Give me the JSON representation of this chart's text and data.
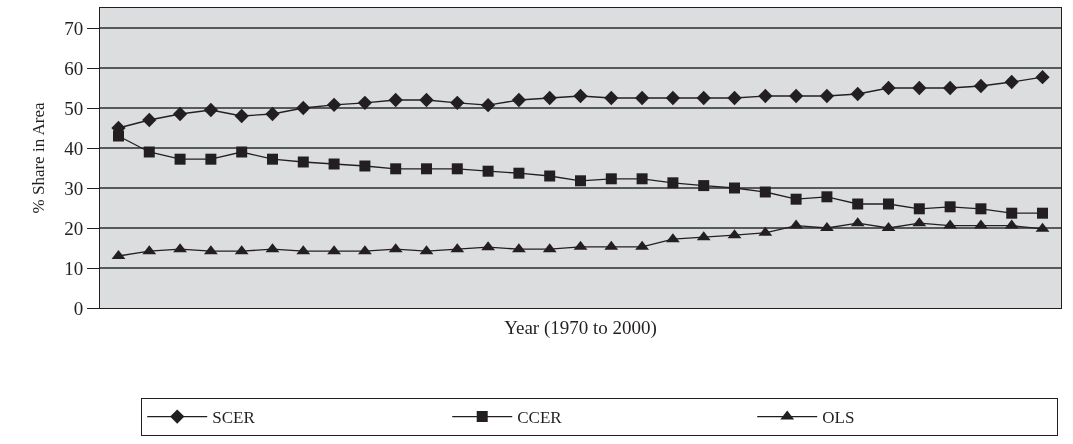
{
  "chart_data": {
    "type": "line",
    "xlabel": "Year (1970 to 2000)",
    "ylabel": "% Share in Area",
    "categories": [
      null,
      null,
      null,
      null,
      null,
      null,
      null,
      null,
      null,
      null,
      null,
      null,
      null,
      null,
      null,
      null,
      null,
      null,
      null,
      null,
      null,
      null,
      null,
      null,
      null,
      null,
      null,
      null,
      null,
      null,
      null
    ],
    "series": [
      {
        "name": "SCER",
        "color": "#231f20",
        "marker": "diamond",
        "values": [
          45,
          47,
          48.5,
          49.5,
          48,
          48.5,
          50,
          50.8,
          51.3,
          52,
          52,
          51.3,
          50.7,
          52,
          52.5,
          53,
          52.5,
          52.5,
          52.5,
          52.5,
          52.5,
          53,
          53,
          53,
          53.5,
          55,
          55,
          55,
          55.5,
          56.5,
          57.7
        ]
      },
      {
        "name": "CCER",
        "color": "#231f20",
        "marker": "square",
        "values": [
          43,
          39,
          37.2,
          37.2,
          39,
          37.2,
          36.5,
          36,
          35.5,
          34.8,
          34.8,
          34.8,
          34.2,
          33.7,
          33,
          31.8,
          32.3,
          32.3,
          31.3,
          30.6,
          30,
          29,
          27.2,
          27.8,
          26,
          26,
          24.8,
          25.3,
          24.8,
          23.7,
          23.7
        ]
      },
      {
        "name": "OLS",
        "color": "#231f20",
        "marker": "triangle",
        "values": [
          13,
          14.2,
          14.7,
          14.2,
          14.2,
          14.7,
          14.2,
          14.2,
          14.2,
          14.7,
          14.2,
          14.7,
          15.2,
          14.7,
          14.7,
          15.3,
          15.3,
          15.3,
          17.2,
          17.7,
          18.2,
          18.8,
          20.6,
          20,
          21.2,
          20,
          21.2,
          20.6,
          20.6,
          20.6,
          19.8
        ]
      }
    ],
    "ylim": [
      0,
      75
    ],
    "yticks": [
      0,
      10,
      20,
      30,
      40,
      50,
      60,
      70
    ],
    "grid": "y",
    "legend": "bottom",
    "line_style": "solid",
    "tick_labels": "y"
  }
}
